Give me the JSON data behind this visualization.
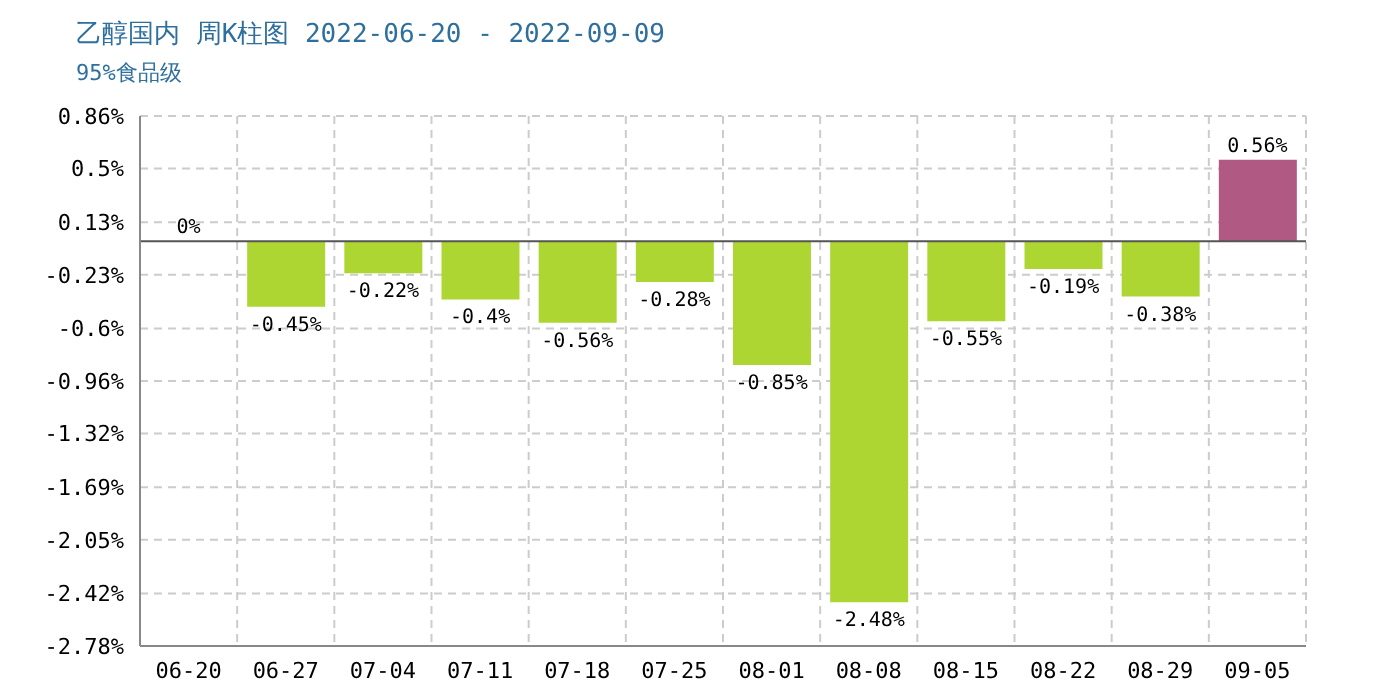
{
  "chart_data": {
    "type": "bar",
    "title": "乙醇国内 周K柱图 2022-06-20 - 2022-09-09",
    "subtitle": "95%食品级",
    "categories": [
      "06-20",
      "06-27",
      "07-04",
      "07-11",
      "07-18",
      "07-25",
      "08-01",
      "08-08",
      "08-15",
      "08-22",
      "08-29",
      "09-05"
    ],
    "values": [
      0,
      -0.45,
      -0.22,
      -0.4,
      -0.56,
      -0.28,
      -0.85,
      -2.48,
      -0.55,
      -0.19,
      -0.38,
      0.56
    ],
    "colors": [
      "#b05a83",
      "#add633",
      "#add633",
      "#add633",
      "#add633",
      "#add633",
      "#add633",
      "#add633",
      "#add633",
      "#add633",
      "#add633",
      "#b05a83"
    ],
    "value_labels": [
      "0%",
      "-0.45%",
      "-0.22%",
      "-0.4%",
      "-0.56%",
      "-0.28%",
      "-0.85%",
      "-2.48%",
      "-0.55%",
      "-0.19%",
      "-0.38%",
      "0.56%"
    ],
    "ylim": [
      -2.78,
      0.86
    ],
    "yticks": [
      {
        "value": 0.86,
        "label": "0.86%"
      },
      {
        "value": 0.5,
        "label": "0.5%"
      },
      {
        "value": 0.13,
        "label": "0.13%"
      },
      {
        "value": -0.23,
        "label": "-0.23%"
      },
      {
        "value": -0.6,
        "label": "-0.6%"
      },
      {
        "value": -0.96,
        "label": "-0.96%"
      },
      {
        "value": -1.32,
        "label": "-1.32%"
      },
      {
        "value": -1.69,
        "label": "-1.69%"
      },
      {
        "value": -2.05,
        "label": "-2.05%"
      },
      {
        "value": -2.42,
        "label": "-2.42%"
      },
      {
        "value": -2.78,
        "label": "-2.78%"
      }
    ],
    "ref_lines": [
      {
        "axis": "y",
        "value": 0,
        "color": "#555555"
      }
    ],
    "grid": true
  }
}
